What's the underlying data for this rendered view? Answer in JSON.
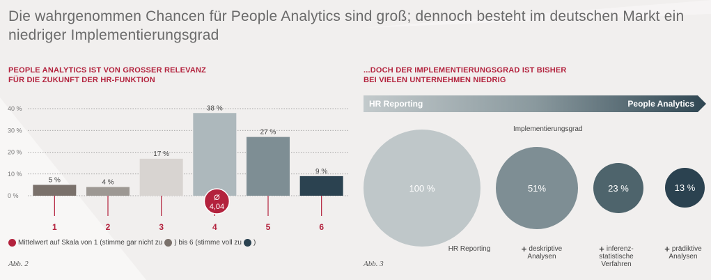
{
  "title": "Die wahrgenommen Chancen für People Analytics sind groß; dennoch besteht im deutschen Markt ein niedriger Implementierungsgrad",
  "left": {
    "heading_line1": "PEOPLE ANALYTICS IST VON GROSSER RELEVANZ",
    "heading_line2": "FÜR DIE ZUKUNFT DER HR-FUNKTION",
    "legend_text_1": "Mittelwert auf Skala von 1 (stimme gar nicht zu",
    "legend_text_2": ") bis 6 (stimme voll zu",
    "legend_text_3": ")",
    "abb": "Abb. 2"
  },
  "right": {
    "heading_line1": "...DOCH DER IMPLEMENTIERUNGSGRAD IST BISHER",
    "heading_line2": "BEI VIELEN UNTERNEHMEN NIEDRIG",
    "bar_left": "HR Reporting",
    "bar_right": "People Analytics",
    "impl_label": "Implementierungsgrad",
    "abb": "Abb. 3",
    "bubbles": [
      {
        "label": "100 %",
        "value": 100,
        "color": "#bfc7c9",
        "caption": [
          "HR Reporting"
        ],
        "plus": false
      },
      {
        "label": "51%",
        "value": 51,
        "color": "#7e8e94",
        "caption": [
          "deskriptive",
          "Analysen"
        ],
        "plus": true
      },
      {
        "label": "23 %",
        "value": 23,
        "color": "#4e646c",
        "caption": [
          "inferenz-",
          "statistische",
          "Verfahren"
        ],
        "plus": true
      },
      {
        "label": "13 %",
        "value": 13,
        "color": "#2b4250",
        "caption": [
          "prädiktive",
          "Analysen"
        ],
        "plus": true
      }
    ]
  },
  "colors": {
    "accent": "#b3223d",
    "scale_low": "#7a716b",
    "scale_high": "#2b4250"
  },
  "chart_data": {
    "type": "bar",
    "categories": [
      "1",
      "2",
      "3",
      "4",
      "5",
      "6"
    ],
    "values": [
      5,
      4,
      17,
      38,
      27,
      9
    ],
    "value_labels": [
      "5 %",
      "4 %",
      "17 %",
      "38 %",
      "27 %",
      "9 %"
    ],
    "bar_colors": [
      "#7a716b",
      "#9d9893",
      "#d8d4d1",
      "#adb8bc",
      "#7e8e94",
      "#2b4250"
    ],
    "yticks": [
      "40 %",
      "30 %",
      "20 %",
      "10 %",
      "0 %"
    ],
    "ytick_values": [
      40,
      30,
      20,
      10,
      0
    ],
    "ylim": [
      0,
      40
    ],
    "grid": true,
    "mean": {
      "symbol": "Ø",
      "value": "4,04",
      "scale_position": 4.04
    }
  }
}
